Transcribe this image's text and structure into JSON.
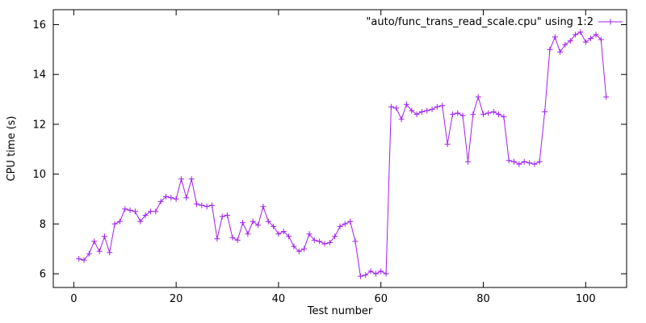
{
  "chart_data": {
    "type": "line",
    "legend": "\"auto/func_trans_read_scale.cpu\" using 1:2",
    "xlabel": "Test number",
    "ylabel": "CPU time (s)",
    "color": "#a020f0",
    "marker": "plus",
    "grid": false,
    "legend_position": "top-right",
    "xlim": [
      -4,
      108
    ],
    "ylim": [
      5.45,
      16.6
    ],
    "xticks": [
      0,
      20,
      40,
      60,
      80,
      100
    ],
    "yticks": [
      6,
      8,
      10,
      12,
      14,
      16
    ],
    "x": [
      1,
      2,
      3,
      4,
      5,
      6,
      7,
      8,
      9,
      10,
      11,
      12,
      13,
      14,
      15,
      16,
      17,
      18,
      19,
      20,
      21,
      22,
      23,
      24,
      25,
      26,
      27,
      28,
      29,
      30,
      31,
      32,
      33,
      34,
      35,
      36,
      37,
      38,
      39,
      40,
      41,
      42,
      43,
      44,
      45,
      46,
      47,
      48,
      49,
      50,
      51,
      52,
      53,
      54,
      55,
      56,
      57,
      58,
      59,
      60,
      61,
      62,
      63,
      64,
      65,
      66,
      67,
      68,
      69,
      70,
      71,
      72,
      73,
      74,
      75,
      76,
      77,
      78,
      79,
      80,
      81,
      82,
      83,
      84,
      85,
      86,
      87,
      88,
      89,
      90,
      91,
      92,
      93,
      94,
      95,
      96,
      97,
      98,
      99,
      100,
      101,
      102,
      103,
      104
    ],
    "values": [
      6.6,
      6.55,
      6.8,
      7.3,
      6.9,
      7.5,
      6.85,
      8.0,
      8.1,
      8.6,
      8.55,
      8.5,
      8.1,
      8.35,
      8.5,
      8.5,
      8.9,
      9.1,
      9.05,
      9.0,
      9.8,
      9.05,
      9.8,
      8.8,
      8.75,
      8.7,
      8.75,
      7.4,
      8.3,
      8.35,
      7.45,
      7.35,
      8.05,
      7.6,
      8.1,
      7.95,
      8.7,
      8.1,
      7.9,
      7.6,
      7.7,
      7.5,
      7.1,
      6.9,
      7.0,
      7.6,
      7.35,
      7.3,
      7.2,
      7.25,
      7.5,
      7.9,
      8.0,
      8.1,
      7.3,
      5.9,
      5.95,
      6.1,
      6.0,
      6.1,
      6.0,
      12.7,
      12.65,
      12.2,
      12.8,
      12.55,
      12.4,
      12.5,
      12.55,
      12.6,
      12.7,
      12.75,
      11.2,
      12.4,
      12.45,
      12.35,
      10.5,
      12.4,
      13.1,
      12.4,
      12.45,
      12.5,
      12.4,
      12.3,
      10.55,
      10.5,
      10.4,
      10.5,
      10.45,
      10.4,
      10.5,
      12.5,
      15.0,
      15.5,
      14.9,
      15.2,
      15.35,
      15.6,
      15.7,
      15.3,
      15.45,
      15.6,
      15.4,
      13.1
    ]
  }
}
